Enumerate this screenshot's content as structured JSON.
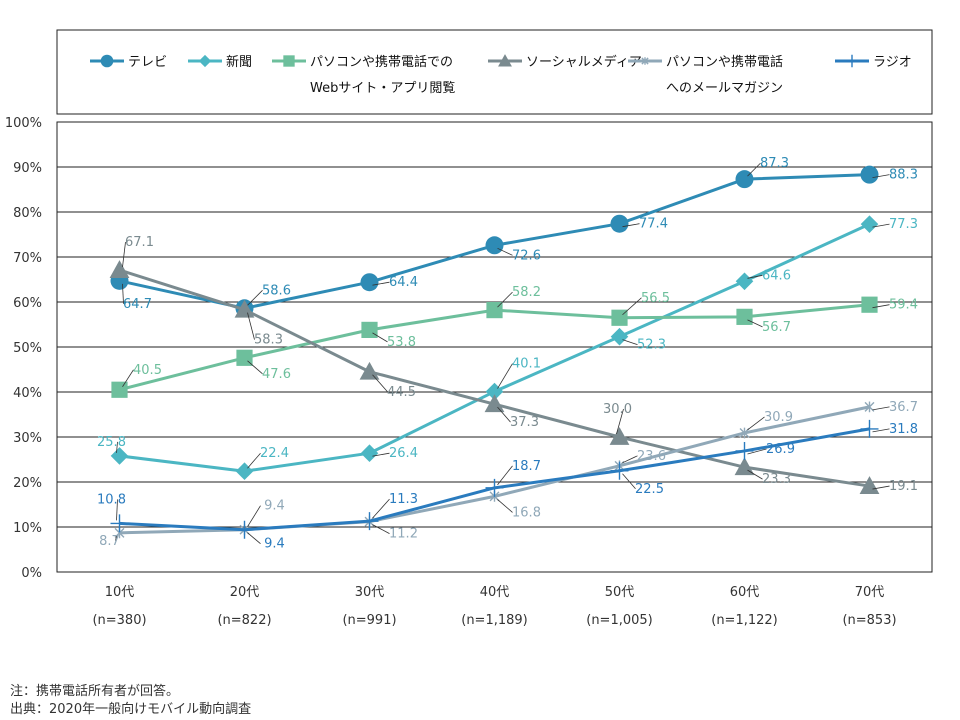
{
  "chart_data": {
    "type": "line",
    "categories": [
      "10代",
      "20代",
      "30代",
      "40代",
      "50代",
      "60代",
      "70代"
    ],
    "sample_sizes": [
      "(n=380)",
      "(n=822)",
      "(n=991)",
      "(n=1,189)",
      "(n=1,005)",
      "(n=1,122)",
      "(n=853)"
    ],
    "y_ticks": [
      "0%",
      "10%",
      "20%",
      "30%",
      "40%",
      "50%",
      "60%",
      "70%",
      "80%",
      "90%",
      "100%"
    ],
    "ylim": [
      0,
      100
    ],
    "grid": "horizontal",
    "legend_position": "top",
    "series": [
      {
        "name": "テレビ",
        "name_lines": [
          "テレビ"
        ],
        "color": "#2E8BB5",
        "marker": "circle",
        "values": [
          64.7,
          58.6,
          64.4,
          72.6,
          77.4,
          87.3,
          88.3
        ],
        "labels": [
          "64.7",
          "58.6",
          "64.4",
          "72.6",
          "77.4",
          "87.3",
          "88.3"
        ]
      },
      {
        "name": "新聞",
        "name_lines": [
          "新聞"
        ],
        "color": "#4BB6C3",
        "marker": "diamond",
        "values": [
          25.8,
          22.4,
          26.4,
          40.1,
          52.3,
          64.6,
          77.3
        ],
        "labels": [
          "25.8",
          "22.4",
          "26.4",
          "40.1",
          "52.3",
          "64.6",
          "77.3"
        ]
      },
      {
        "name": "パソコンや携帯電話でのWebサイト・アプリ閲覧",
        "name_lines": [
          "パソコンや携帯電話での",
          "Webサイト・アプリ閲覧"
        ],
        "color": "#6DBF9C",
        "marker": "square",
        "values": [
          40.5,
          47.6,
          53.8,
          58.2,
          56.5,
          56.7,
          59.4
        ],
        "labels": [
          "40.5",
          "47.6",
          "53.8",
          "58.2",
          "56.5",
          "56.7",
          "59.4"
        ]
      },
      {
        "name": "ソーシャルメディア",
        "name_lines": [
          "ソーシャルメディア"
        ],
        "color": "#7A8A8F",
        "marker": "triangle",
        "values": [
          67.1,
          58.3,
          44.5,
          37.3,
          30.0,
          23.3,
          19.1
        ],
        "labels": [
          "67.1",
          "58.3",
          "44.5",
          "37.3",
          "30.0",
          "23.3",
          "19.1"
        ]
      },
      {
        "name": "パソコンや携帯電話へのメールマガジン",
        "name_lines": [
          "パソコンや携帯電話",
          "へのメールマガジン"
        ],
        "color": "#90A8B8",
        "marker": "star",
        "values": [
          8.7,
          9.4,
          11.2,
          16.8,
          23.6,
          30.9,
          36.7
        ],
        "labels": [
          "8.7",
          "9.4",
          "11.2",
          "16.8",
          "23.6",
          "30.9",
          "36.7"
        ]
      },
      {
        "name": "ラジオ",
        "name_lines": [
          "ラジオ"
        ],
        "color": "#2A7BBE",
        "marker": "plus",
        "values": [
          10.8,
          9.4,
          11.3,
          18.7,
          22.5,
          26.9,
          31.8
        ],
        "labels": [
          "10.8",
          "9.4",
          "11.3",
          "18.7",
          "22.5",
          "26.9",
          "31.8"
        ]
      }
    ]
  },
  "notes": {
    "note": "注：携帯電話所有者が回答。",
    "source": "出典：2020年一般向けモバイル動向調査"
  }
}
